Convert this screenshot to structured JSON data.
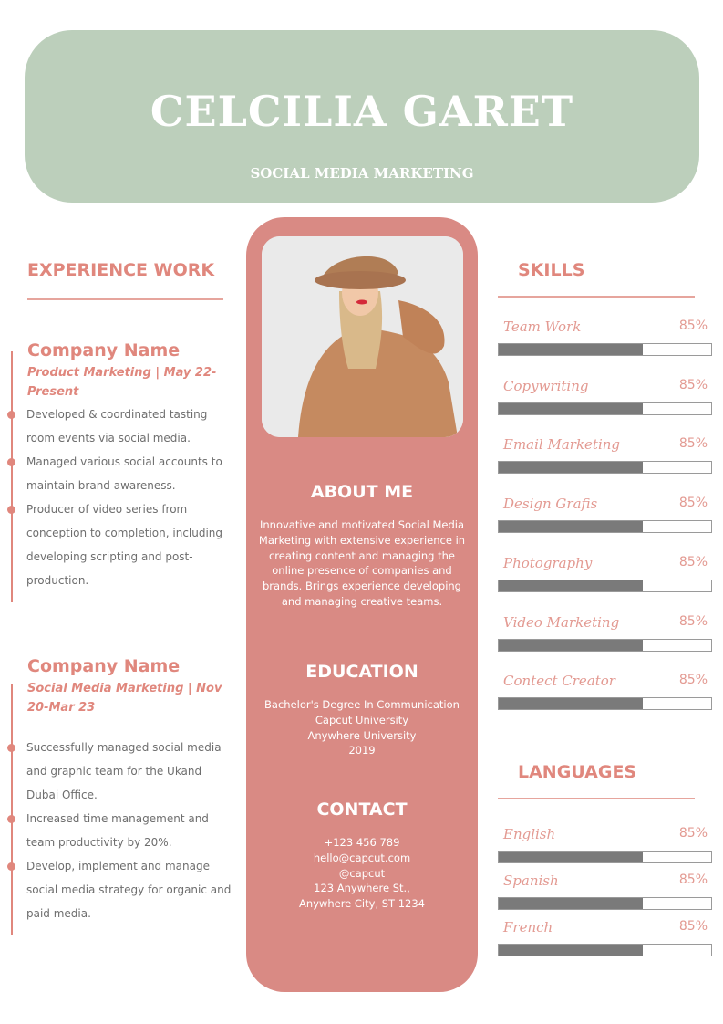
{
  "header": {
    "name": "CELCILIA GARET",
    "role": "SOCIAL MEDIA MARKETING"
  },
  "colors": {
    "header_bg": "#bccfbb",
    "accent": "#e0877d",
    "center_bg": "#d98a84",
    "bar_fill": "#7a7a7a"
  },
  "experience": {
    "title": "EXPERIENCE WORK",
    "jobs": [
      {
        "company": "Company Name",
        "subtitle": "Product Marketing | May 22-Present",
        "bullets": [
          "Developed & coordinated tasting room events via social media.",
          "Managed various social accounts to maintain brand awareness.",
          "Producer of video series from conception to completion, including developing scripting and post-production."
        ]
      },
      {
        "company": "Company Name",
        "subtitle": "Social Media Marketing | Nov 20-Mar 23",
        "bullets": [
          "Successfully managed social media and graphic team for the Ukand Dubai Office.",
          "Increased time management and team productivity by 20%.",
          "Develop, implement and manage social media strategy for organic and paid media."
        ]
      }
    ]
  },
  "about": {
    "title": "ABOUT ME",
    "text": "Innovative and motivated Social Media Marketing with extensive experience in creating content and managing the online presence of companies and brands. Brings experience developing and managing creative teams."
  },
  "education": {
    "title": "EDUCATION",
    "lines": [
      "Bachelor's Degree In Communication",
      "Capcut University",
      "Anywhere University",
      "2019"
    ]
  },
  "contact": {
    "title": "CONTACT",
    "lines": [
      "+123  456 789",
      "hello@capcut.com",
      "@capcut",
      "123 Anywhere St.,",
      "Anywhere City, ST 1234"
    ]
  },
  "skills": {
    "title": "SKILLS",
    "items": [
      {
        "label": "Team Work",
        "pct": "85%",
        "fill": 68
      },
      {
        "label": "Copywriting",
        "pct": "85%",
        "fill": 68
      },
      {
        "label": "Email Marketing",
        "pct": "85%",
        "fill": 68
      },
      {
        "label": "Design Grafis",
        "pct": "85%",
        "fill": 68
      },
      {
        "label": "Photography",
        "pct": "85%",
        "fill": 68
      },
      {
        "label": "Video Marketing",
        "pct": "85%",
        "fill": 68
      },
      {
        "label": "Contect Creator",
        "pct": "85%",
        "fill": 68
      }
    ]
  },
  "languages": {
    "title": "LANGUAGES",
    "items": [
      {
        "label": "English",
        "pct": "85%",
        "fill": 68
      },
      {
        "label": "Spanish",
        "pct": "85%",
        "fill": 68
      },
      {
        "label": "French",
        "pct": "85%",
        "fill": 68
      }
    ]
  }
}
